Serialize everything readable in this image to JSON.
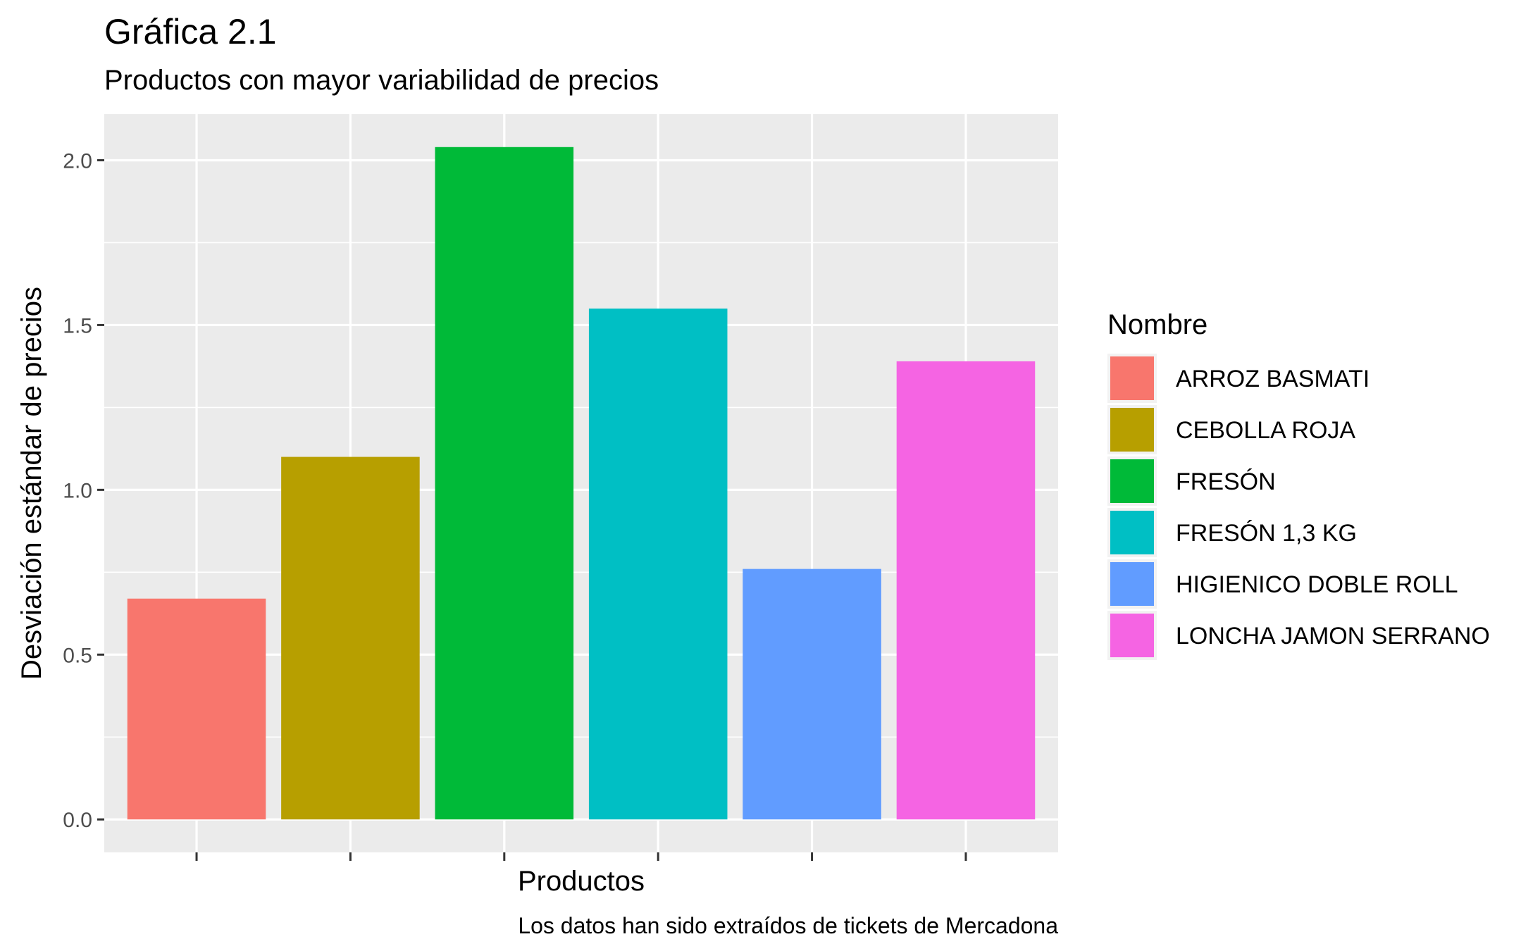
{
  "chart_data": {
    "type": "bar",
    "title": "Gráfica 2.1",
    "subtitle": "Productos con mayor variabilidad de precios",
    "xlabel": "Productos",
    "ylabel": "Desviación estándar de precios",
    "caption": "Los datos han sido extraídos de tickets de Mercadona",
    "categories": [
      "ARROZ BASMATI",
      "CEBOLLA ROJA",
      "FRESÓN",
      "FRESÓN 1,3 KG",
      "HIGIENICO DOBLE ROLL",
      "LONCHA JAMON SERRANO"
    ],
    "values": [
      0.67,
      1.1,
      2.04,
      1.55,
      0.76,
      1.39
    ],
    "colors": [
      "#F8766D",
      "#B79F00",
      "#00BA38",
      "#00BFC4",
      "#619CFF",
      "#F564E3"
    ],
    "yticks": [
      "0.0",
      "0.5",
      "1.0",
      "1.5",
      "2.0"
    ],
    "ylim": [
      -0.1,
      2.14
    ],
    "x_tick_labels_shown": false,
    "grid": true,
    "panel_background": "#EBEBEB",
    "legend": {
      "title": "Nombre",
      "placement": "right"
    }
  }
}
